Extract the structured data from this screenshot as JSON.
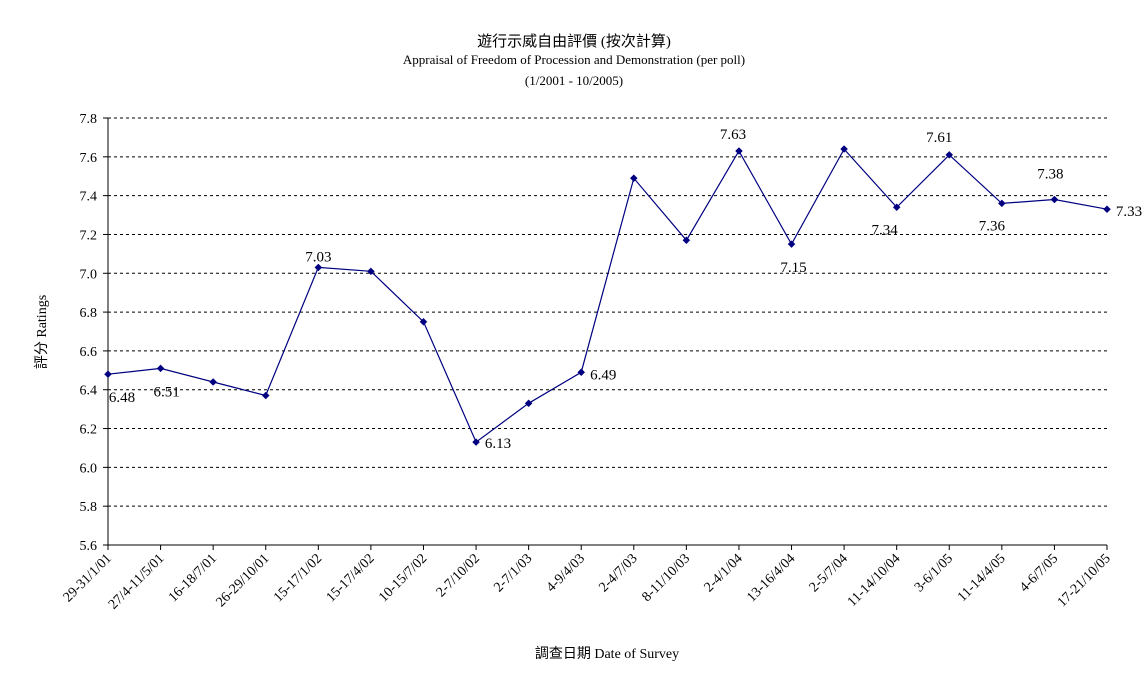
{
  "chart_data": {
    "type": "line",
    "title": "遊行示威自由評價 (按次計算)",
    "subtitle": "Appraisal of Freedom of Procession and Demonstration (per poll)",
    "period": "(1/2001 - 10/2005)",
    "xlabel": "調查日期 Date of Survey",
    "ylabel": "評分 Ratings",
    "ylim": [
      5.6,
      7.8
    ],
    "yticks": [
      "5.6",
      "5.8",
      "6.0",
      "6.2",
      "6.4",
      "6.6",
      "6.8",
      "7.0",
      "7.2",
      "7.4",
      "7.6",
      "7.8"
    ],
    "grid": true,
    "legend": "none",
    "line_color": "#000080",
    "categories": [
      "29-31/1/01",
      "27/4-11/5/01",
      "16-18/7/01",
      "26-29/10/01",
      "15-17/1/02",
      "15-17/4/02",
      "10-15/7/02",
      "2-7/10/02",
      "2-7/1/03",
      "4-9/4/03",
      "2-4/7/03",
      "8-11/10/03",
      "2-4/1/04",
      "13-16/4/04",
      "2-5/7/04",
      "11-14/10/04",
      "3-6/1/05",
      "11-14/4/05",
      "4-6/7/05",
      "17-21/10/05"
    ],
    "values": [
      6.48,
      6.51,
      6.44,
      6.37,
      7.03,
      7.01,
      6.75,
      6.13,
      6.33,
      6.49,
      7.49,
      7.17,
      7.63,
      7.15,
      7.64,
      7.34,
      7.61,
      7.36,
      7.38,
      7.33
    ],
    "data_labels": [
      {
        "index": 0,
        "text": "6.48"
      },
      {
        "index": 1,
        "text": "6.51"
      },
      {
        "index": 4,
        "text": "7.03"
      },
      {
        "index": 7,
        "text": "6.13"
      },
      {
        "index": 9,
        "text": "6.49"
      },
      {
        "index": 12,
        "text": "7.63"
      },
      {
        "index": 13,
        "text": "7.15"
      },
      {
        "index": 15,
        "text": "7.34"
      },
      {
        "index": 16,
        "text": "7.61"
      },
      {
        "index": 17,
        "text": "7.36"
      },
      {
        "index": 18,
        "text": "7.38"
      },
      {
        "index": 19,
        "text": "7.33"
      }
    ]
  }
}
